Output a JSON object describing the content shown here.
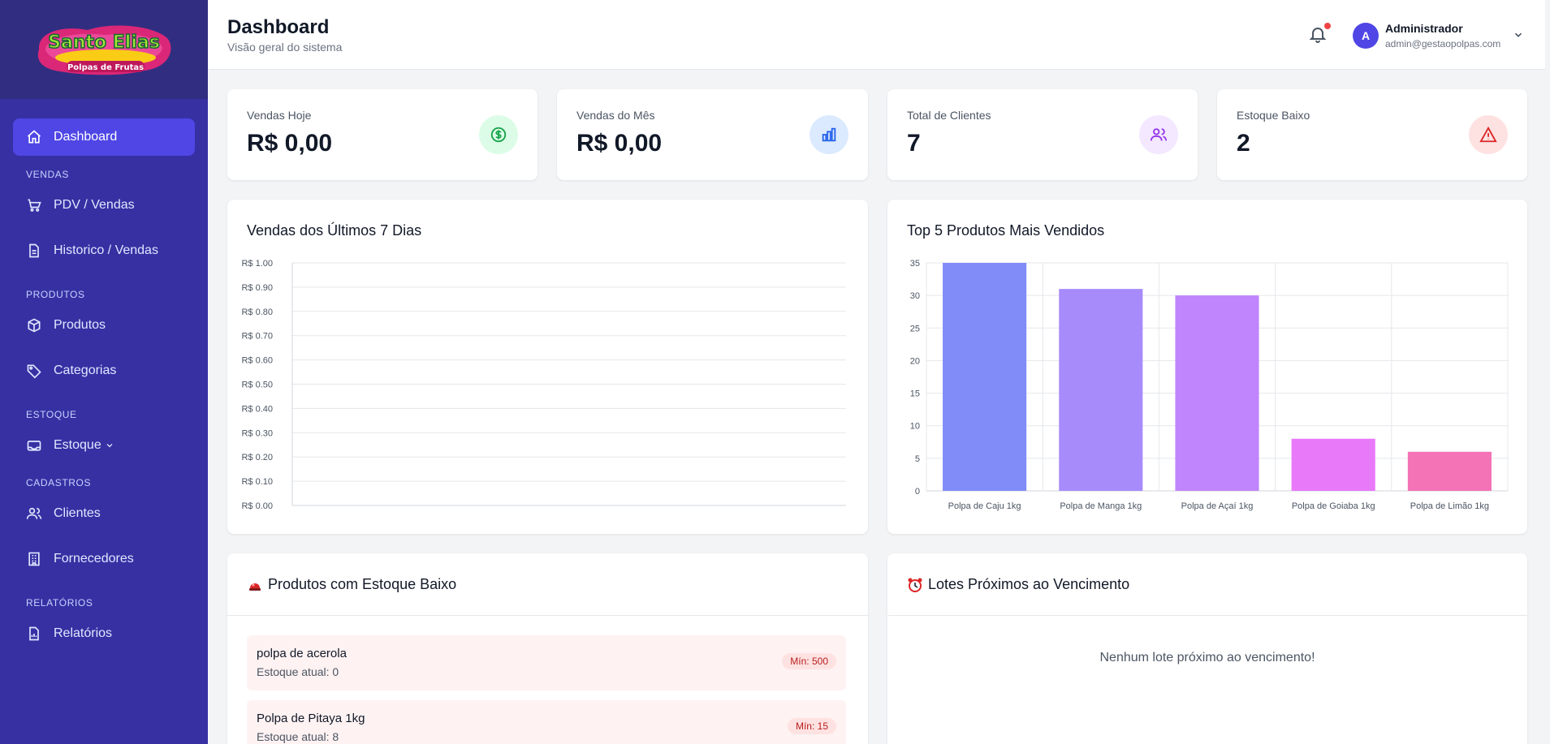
{
  "brand": {
    "logo_line1": "Santo Elias",
    "logo_line2": "Polpas de Frutas"
  },
  "sidebar": {
    "dashboard": "Dashboard",
    "sections": {
      "vendas": "VENDAS",
      "produtos": "PRODUTOS",
      "estoque": "ESTOQUE",
      "cadastros": "CADASTROS",
      "relatorios": "RELATÓRIOS"
    },
    "items": {
      "pdv": "PDV / Vendas",
      "historico": "Historico / Vendas",
      "produtos": "Produtos",
      "categorias": "Categorias",
      "estoque": "Estoque",
      "clientes": "Clientes",
      "fornecedores": "Fornecedores",
      "relatorios": "Relatórios"
    }
  },
  "header": {
    "title": "Dashboard",
    "subtitle": "Visão geral do sistema",
    "user_initial": "A",
    "user_name": "Administrador",
    "user_email": "admin@gestaopolpas.com"
  },
  "stats": {
    "vendas_hoje": {
      "label": "Vendas Hoje",
      "value": "R$ 0,00"
    },
    "vendas_mes": {
      "label": "Vendas do Mês",
      "value": "R$ 0,00"
    },
    "clientes": {
      "label": "Total de Clientes",
      "value": "7"
    },
    "estoque_baixo": {
      "label": "Estoque Baixo",
      "value": "2"
    }
  },
  "chart_data": [
    {
      "type": "line",
      "title": "Vendas dos Últimos 7 Dias",
      "y_ticks": [
        "R$ 1.00",
        "R$ 0.90",
        "R$ 0.80",
        "R$ 0.70",
        "R$ 0.60",
        "R$ 0.50",
        "R$ 0.40",
        "R$ 0.30",
        "R$ 0.20",
        "R$ 0.10",
        "R$ 0.00"
      ],
      "ylim": [
        0,
        1
      ],
      "x": [],
      "values": []
    },
    {
      "type": "bar",
      "title": "Top 5 Produtos Mais Vendidos",
      "categories": [
        "Polpa de Caju 1kg",
        "Polpa de Manga 1kg",
        "Polpa de Açaí 1kg",
        "Polpa de Goiaba 1kg",
        "Polpa de Limão 1kg"
      ],
      "values": [
        35,
        31,
        30,
        8,
        6
      ],
      "colors": [
        "#818cf8",
        "#a78bfa",
        "#c084fc",
        "#e879f9",
        "#f472b6"
      ],
      "y_ticks": [
        "35",
        "30",
        "25",
        "20",
        "15",
        "10",
        "5",
        "0"
      ],
      "ylim": [
        0,
        35
      ]
    }
  ],
  "low_stock": {
    "title": "Produtos com Estoque Baixo",
    "items": [
      {
        "name": "polpa de acerola",
        "stock": "Estoque atual: 0",
        "min": "Mín: 500"
      },
      {
        "name": "Polpa de Pitaya 1kg",
        "stock": "Estoque atual: 8",
        "min": "Mín: 15"
      }
    ]
  },
  "expiring": {
    "title": "Lotes Próximos ao Vencimento",
    "empty": "Nenhum lote próximo ao vencimento!"
  }
}
